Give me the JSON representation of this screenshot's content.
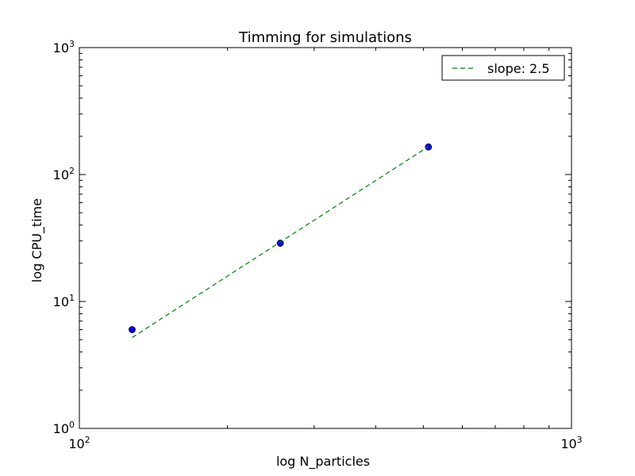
{
  "chart_data": {
    "type": "scatter",
    "title": "Timming for simulations",
    "xlabel": "log  N_particles",
    "ylabel": "log  CPU_time",
    "x_scale": "log",
    "y_scale": "log",
    "xlim": [
      100,
      1000
    ],
    "ylim": [
      1,
      1000
    ],
    "x_ticks": [
      {
        "base": "10",
        "exp": "2"
      },
      {
        "base": "10",
        "exp": "3"
      }
    ],
    "y_ticks": [
      {
        "base": "10",
        "exp": "0"
      },
      {
        "base": "10",
        "exp": "1"
      },
      {
        "base": "10",
        "exp": "2"
      },
      {
        "base": "10",
        "exp": "3"
      }
    ],
    "grid": false,
    "legend_position": "top-right",
    "series": [
      {
        "kind": "points",
        "color": "#0000ff",
        "x": [
          128,
          256,
          512
        ],
        "y": [
          6.0,
          28.8,
          165
        ]
      },
      {
        "kind": "dashed-line",
        "name": "slope: 2.5",
        "color": "#008000",
        "x": [
          128,
          512
        ],
        "y": [
          5.2,
          166
        ]
      }
    ]
  }
}
